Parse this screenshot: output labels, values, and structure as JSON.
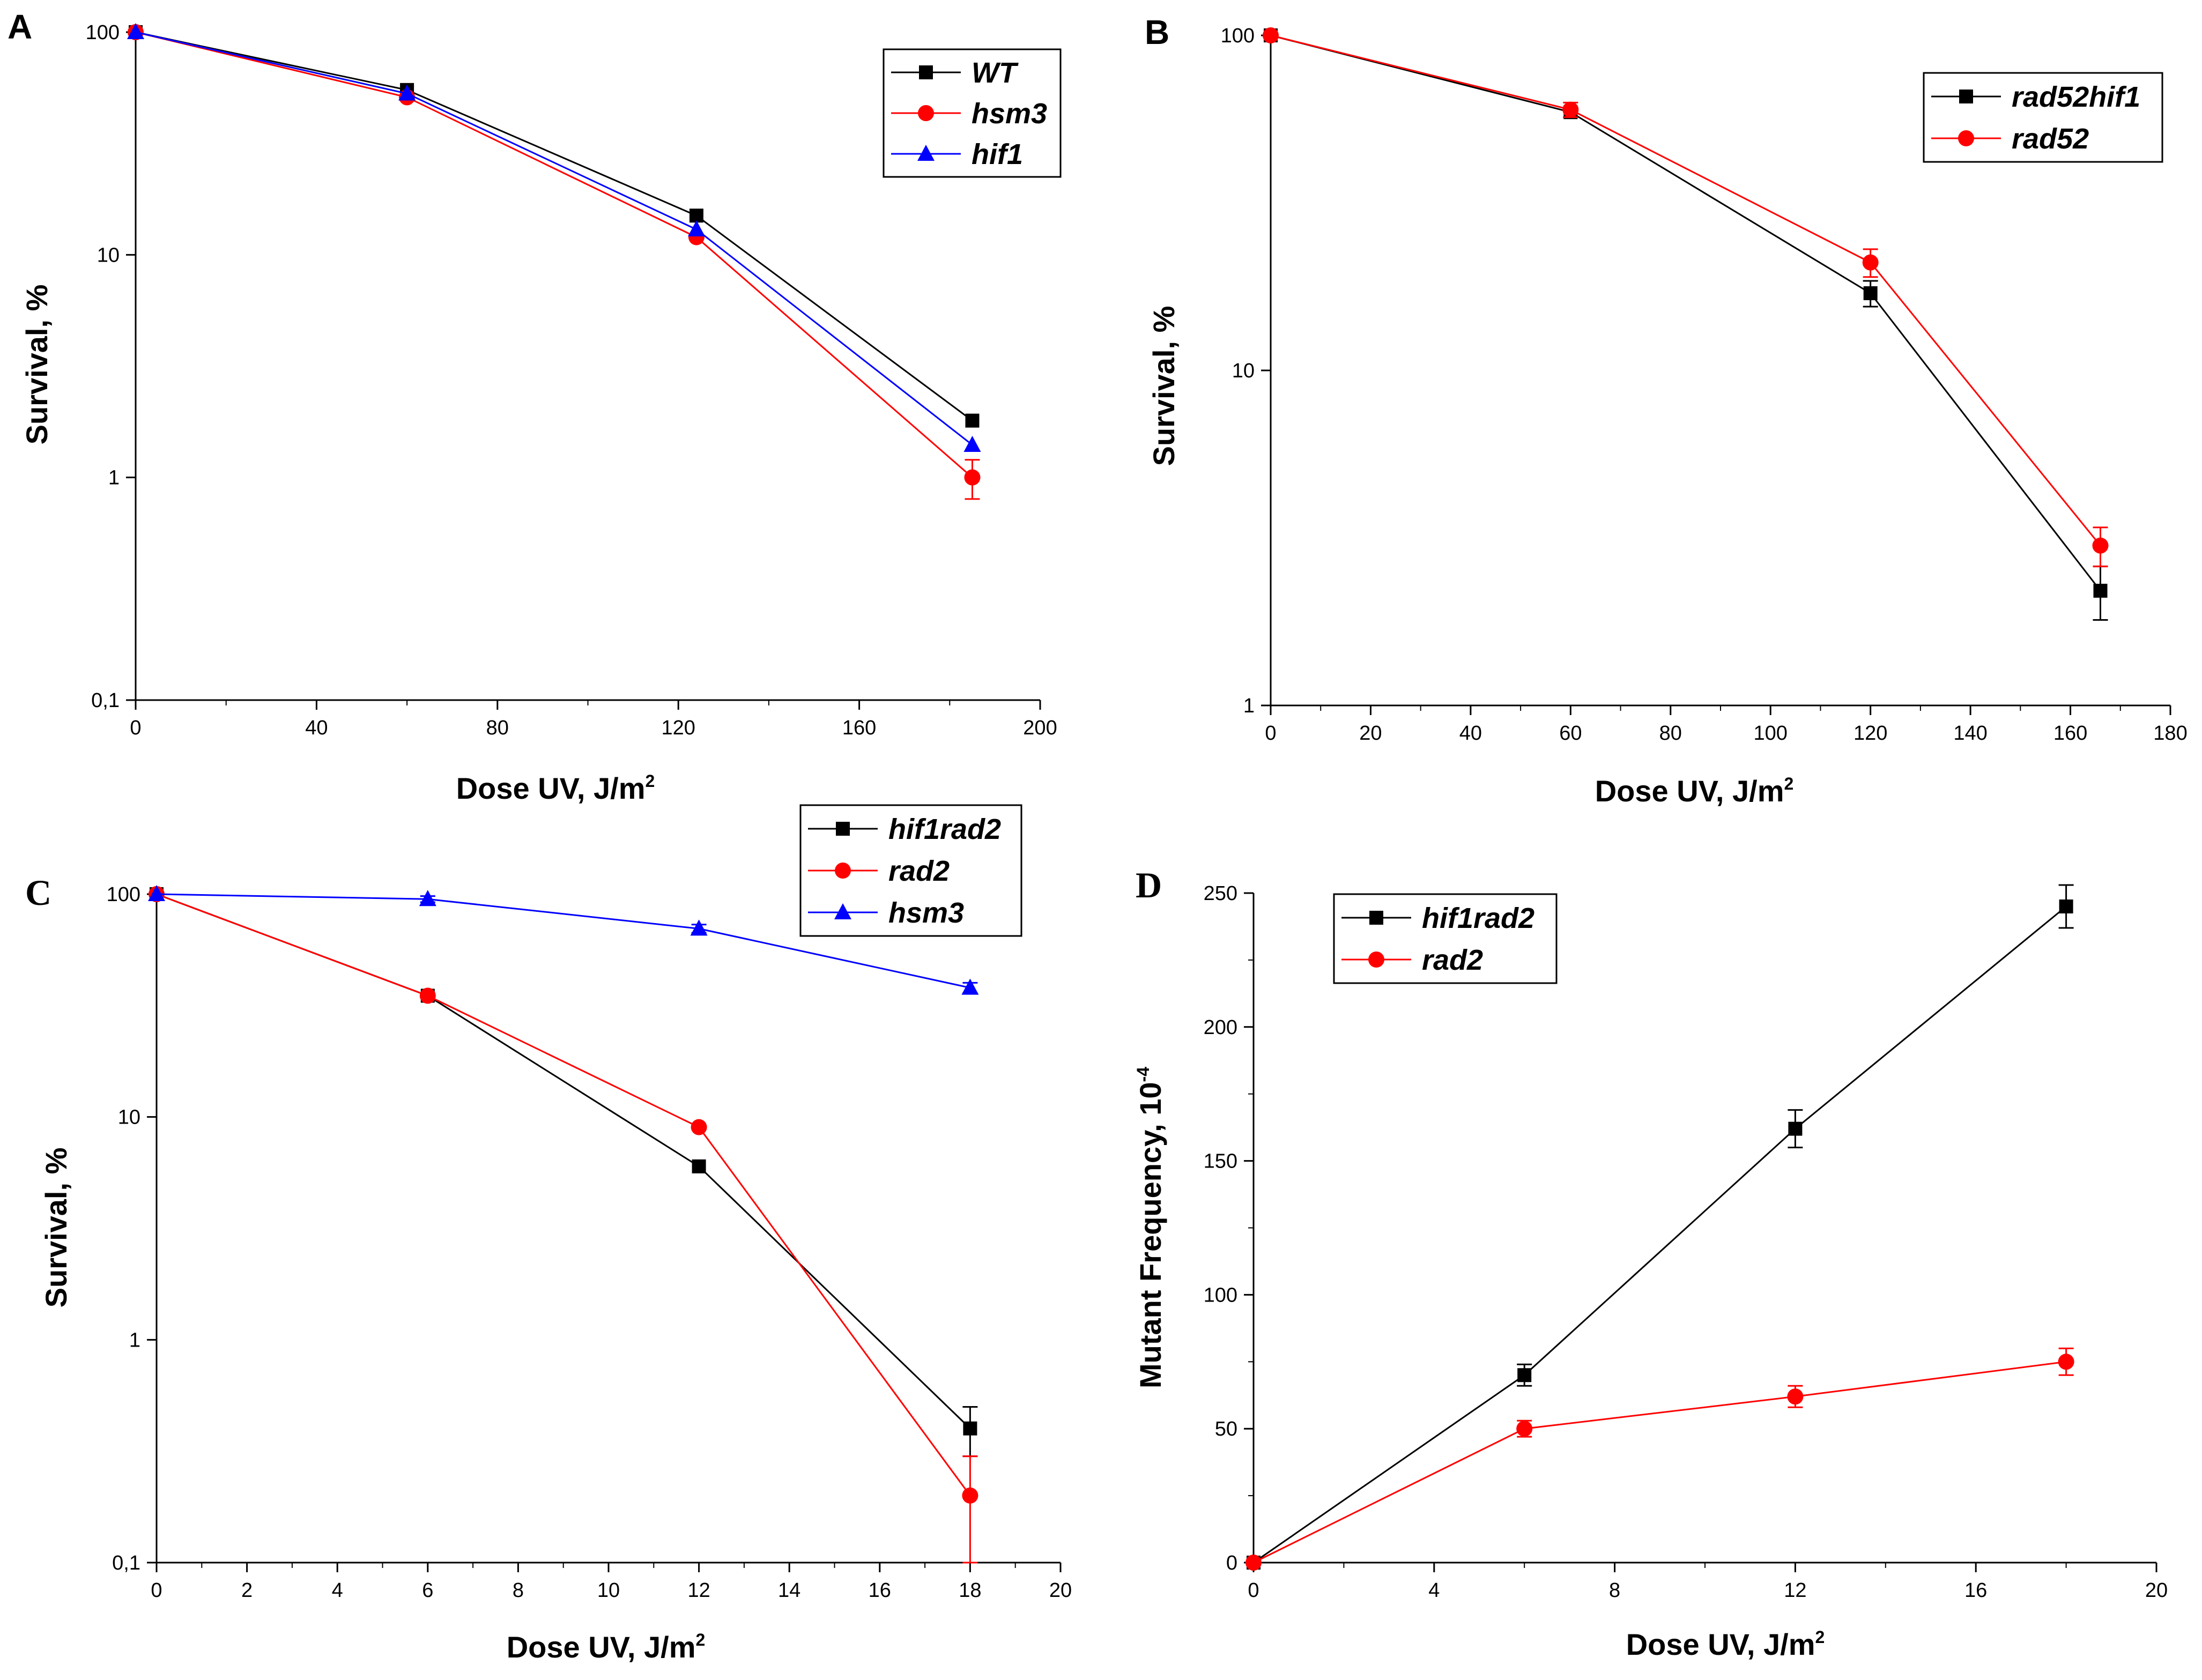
{
  "figure": {
    "panel_count": 4
  },
  "colors": {
    "black": "#000000",
    "red": "#ff0000",
    "blue": "#0000ff"
  },
  "chart_data": [
    {
      "panel": "A",
      "type": "line",
      "yscale": "log",
      "xlabel": "Dose UV, J/m",
      "xlabel_sup": "2",
      "ylabel": "Survival, %",
      "xlim": [
        0,
        200
      ],
      "ylim": [
        0.1,
        100
      ],
      "xticks": [
        0,
        40,
        80,
        120,
        160,
        200
      ],
      "xtick_labels": [
        "0",
        "40",
        "80",
        "120",
        "160",
        "200"
      ],
      "yticks": [
        0.1,
        1,
        10,
        100
      ],
      "ytick_labels": [
        "0,1",
        "1",
        "10",
        "100"
      ],
      "legend_position": "top-right",
      "series": [
        {
          "name": "WT",
          "color": "#000000",
          "marker": "square",
          "x": [
            0,
            60,
            124,
            185
          ],
          "y": [
            100,
            55,
            15,
            1.8
          ],
          "err": [
            0,
            0,
            0,
            0
          ]
        },
        {
          "name": "hsm3",
          "color": "#ff0000",
          "marker": "circle",
          "x": [
            0,
            60,
            124,
            185
          ],
          "y": [
            100,
            51,
            12,
            1.0
          ],
          "err": [
            0,
            0,
            0,
            0.2
          ]
        },
        {
          "name": "hif1",
          "color": "#0000ff",
          "marker": "triangle",
          "x": [
            0,
            60,
            124,
            185
          ],
          "y": [
            100,
            53,
            13,
            1.4
          ],
          "err": [
            0,
            0,
            0,
            0
          ]
        }
      ]
    },
    {
      "panel": "B",
      "type": "line",
      "yscale": "log",
      "xlabel": "Dose UV, J/m",
      "xlabel_sup": "2",
      "ylabel": "Survival, %",
      "xlim": [
        0,
        180
      ],
      "ylim": [
        1,
        100
      ],
      "xticks": [
        0,
        20,
        40,
        60,
        80,
        100,
        120,
        140,
        160,
        180
      ],
      "xtick_labels": [
        "0",
        "20",
        "40",
        "60",
        "80",
        "100",
        "120",
        "140",
        "160",
        "180"
      ],
      "yticks": [
        1,
        10,
        100
      ],
      "ytick_labels": [
        "1",
        "10",
        "100"
      ],
      "legend_position": "top-right",
      "series": [
        {
          "name": "rad52hif1",
          "color": "#000000",
          "marker": "square",
          "x": [
            0,
            60,
            120,
            166
          ],
          "y": [
            100,
            59,
            17,
            2.2
          ],
          "err": [
            0,
            2,
            1.5,
            0.4
          ]
        },
        {
          "name": "rad52",
          "color": "#ff0000",
          "marker": "circle",
          "x": [
            0,
            60,
            120,
            166
          ],
          "y": [
            100,
            60,
            21,
            3.0
          ],
          "err": [
            0,
            3,
            2,
            0.4
          ]
        }
      ]
    },
    {
      "panel": "C",
      "type": "line",
      "yscale": "log",
      "xlabel": "Dose UV, J/m",
      "xlabel_sup": "2",
      "ylabel": "Survival, %",
      "xlim": [
        0,
        20
      ],
      "ylim": [
        0.1,
        100
      ],
      "xticks": [
        0,
        2,
        4,
        6,
        8,
        10,
        12,
        14,
        16,
        18,
        20
      ],
      "xtick_labels": [
        "0",
        "2",
        "4",
        "6",
        "8",
        "10",
        "12",
        "14",
        "16",
        "18",
        "20"
      ],
      "yticks": [
        0.1,
        1,
        10,
        100
      ],
      "ytick_labels": [
        "0,1",
        "1",
        "10",
        "100"
      ],
      "legend_position": "top-right",
      "series": [
        {
          "name": "hif1rad2",
          "color": "#000000",
          "marker": "square",
          "x": [
            0,
            6,
            12,
            18
          ],
          "y": [
            100,
            35,
            6,
            0.4
          ],
          "err": [
            0,
            0,
            0,
            0.1
          ]
        },
        {
          "name": "rad2",
          "color": "#ff0000",
          "marker": "circle",
          "x": [
            0,
            6,
            12,
            18
          ],
          "y": [
            100,
            35,
            9,
            0.2
          ],
          "err": [
            0,
            0,
            0,
            0.1
          ]
        },
        {
          "name": "hsm3",
          "color": "#0000ff",
          "marker": "triangle",
          "x": [
            0,
            6,
            12,
            18
          ],
          "y": [
            100,
            95,
            70,
            38
          ],
          "err": [
            0,
            3,
            3,
            2
          ]
        }
      ]
    },
    {
      "panel": "D",
      "type": "line",
      "yscale": "linear",
      "xlabel": "Dose UV, J/m",
      "xlabel_sup": "2",
      "ylabel": "Mutant Frequency, 10",
      "ylabel_sup": "-4",
      "xlim": [
        0,
        20
      ],
      "ylim": [
        0,
        250
      ],
      "xticks": [
        0,
        4,
        8,
        12,
        16,
        20
      ],
      "xtick_labels": [
        "0",
        "4",
        "8",
        "12",
        "16",
        "20"
      ],
      "yticks": [
        0,
        50,
        100,
        150,
        200,
        250
      ],
      "ytick_labels": [
        "0",
        "50",
        "100",
        "150",
        "200",
        "250"
      ],
      "legend_position": "top-left",
      "series": [
        {
          "name": "hif1rad2",
          "color": "#000000",
          "marker": "square",
          "x": [
            0,
            6,
            12,
            18
          ],
          "y": [
            0,
            70,
            162,
            245
          ],
          "err": [
            0,
            4,
            7,
            8
          ]
        },
        {
          "name": "rad2",
          "color": "#ff0000",
          "marker": "circle",
          "x": [
            0,
            6,
            12,
            18
          ],
          "y": [
            0,
            50,
            62,
            75
          ],
          "err": [
            0,
            3,
            4,
            5
          ]
        }
      ]
    }
  ]
}
